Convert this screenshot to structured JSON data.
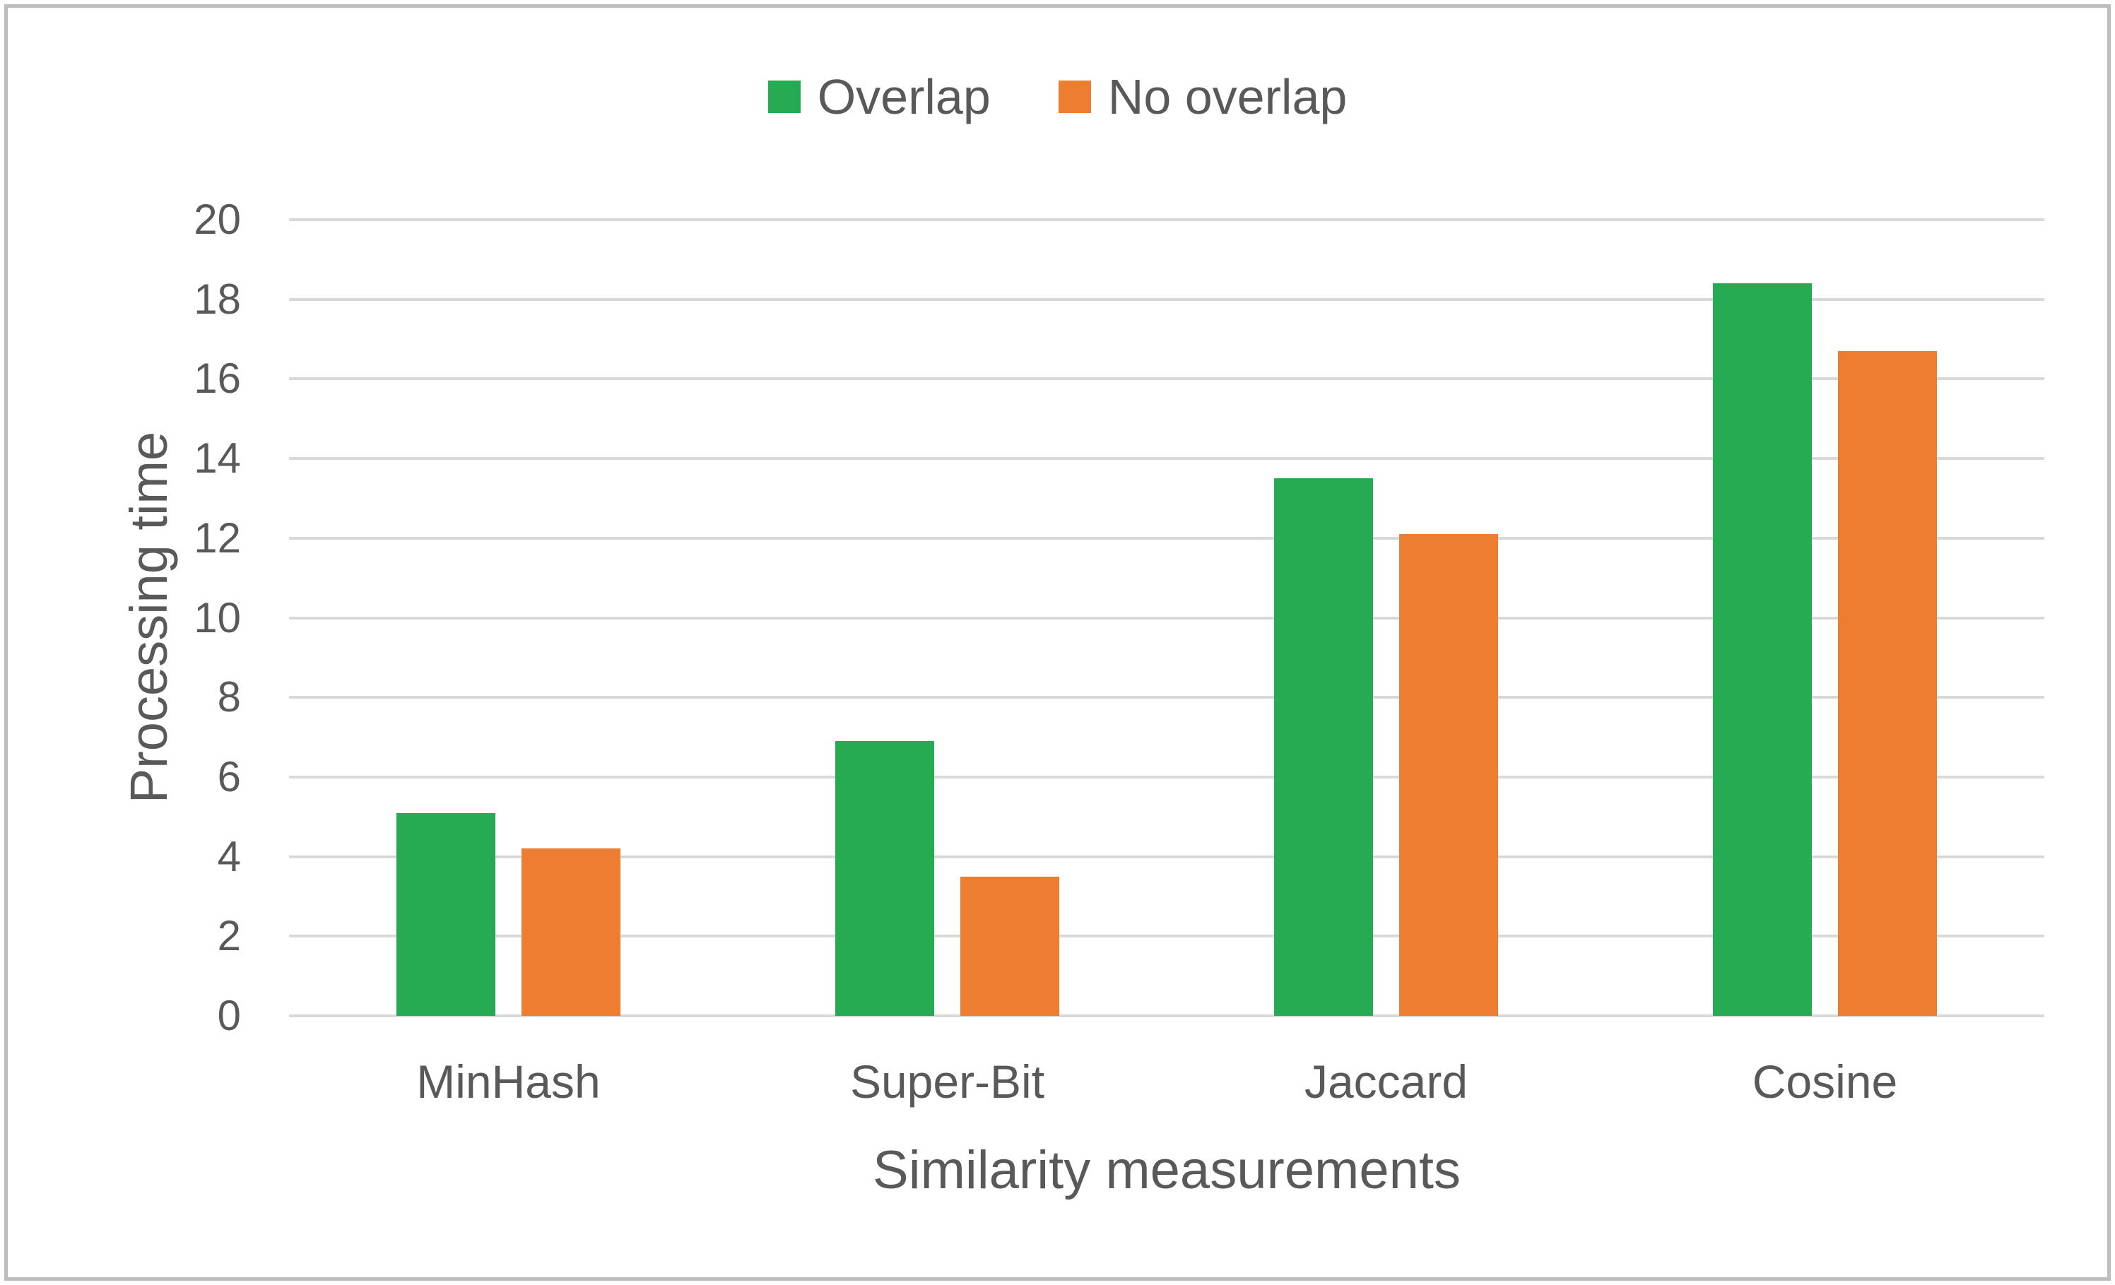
{
  "chart_data": {
    "type": "bar",
    "title": "",
    "categories": [
      "MinHash",
      "Super-Bit",
      "Jaccard",
      "Cosine"
    ],
    "series": [
      {
        "name": "Overlap",
        "color": "#26ab53",
        "values": [
          5.1,
          6.9,
          13.5,
          18.4
        ]
      },
      {
        "name": "No overlap",
        "color": "#ed7d31",
        "values": [
          4.2,
          3.5,
          12.1,
          16.7
        ]
      }
    ],
    "xlabel": "Similarity measurements",
    "ylabel": "Processing time",
    "ylim": [
      0,
      20
    ],
    "y_ticks": [
      0,
      2,
      4,
      6,
      8,
      10,
      12,
      14,
      16,
      18,
      20
    ],
    "grid": "horizontal",
    "legend_position": "top-center"
  },
  "colors": {
    "text": "#595959",
    "gridline": "#d9d9d9",
    "frame_border": "#bdbdbd",
    "background": "#ffffff"
  }
}
